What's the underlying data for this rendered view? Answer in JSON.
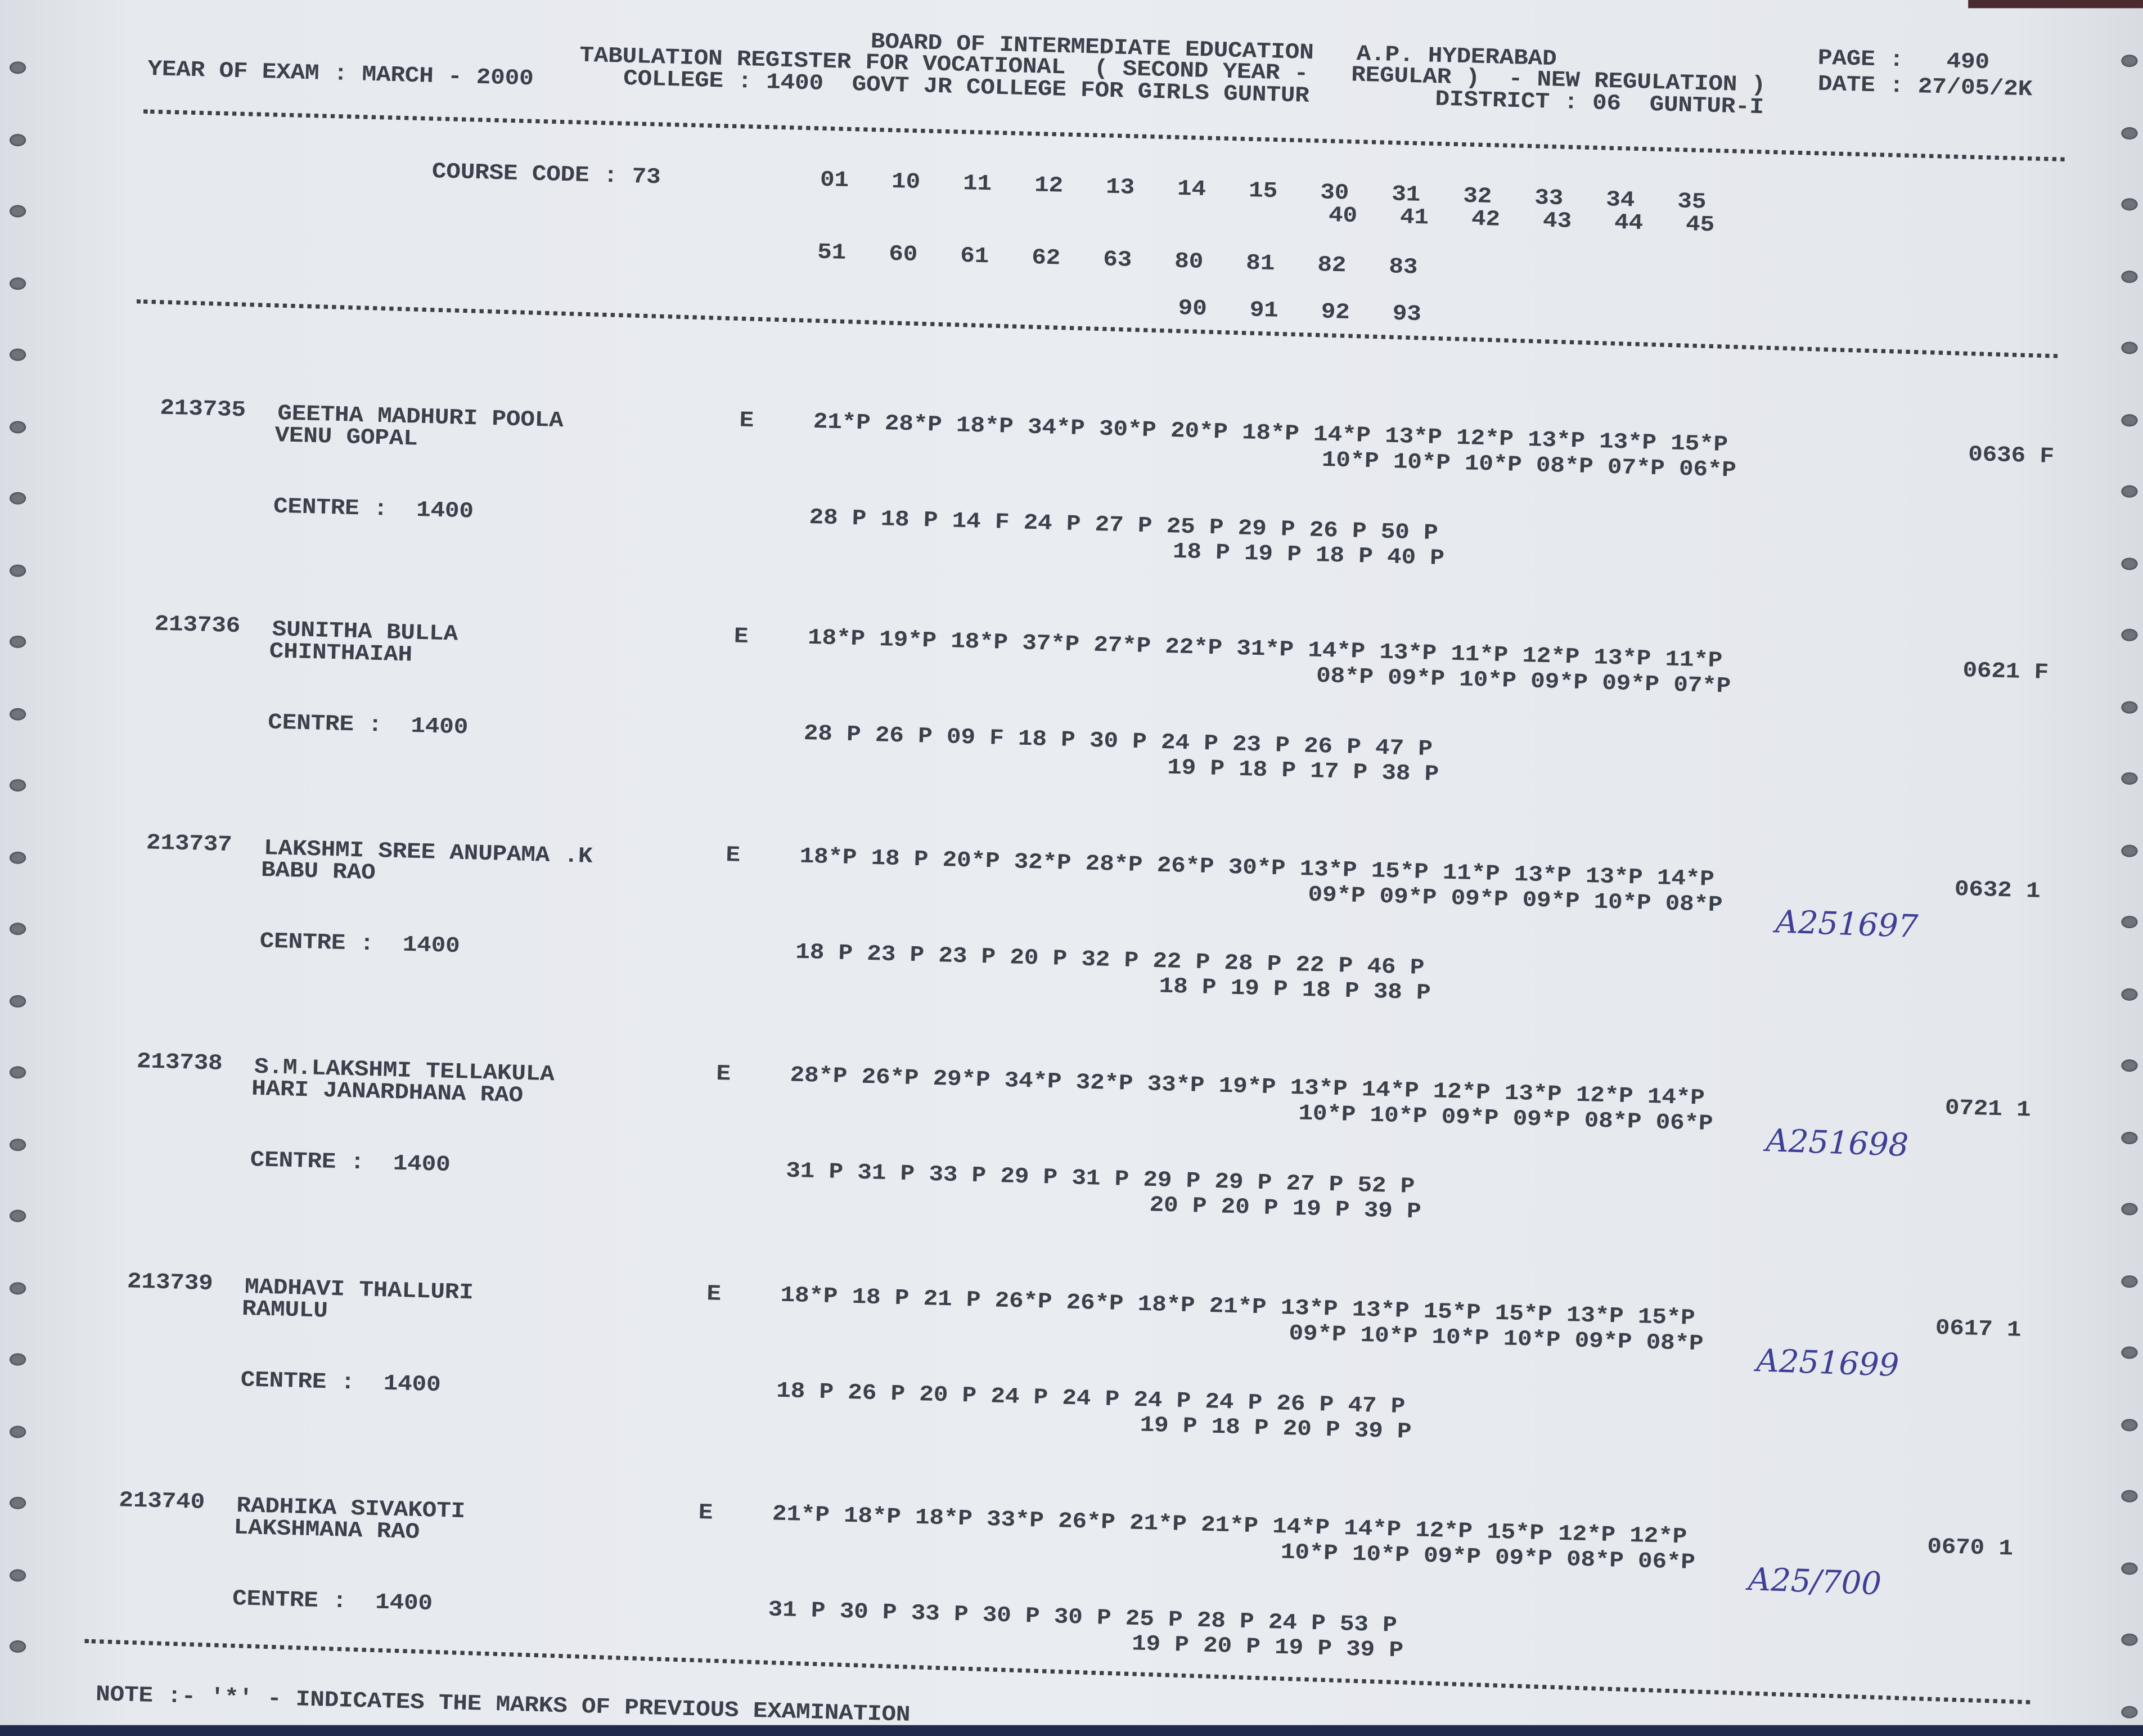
{
  "header": {
    "board_line": "BOARD OF INTERMEDIATE EDUCATION   A.P. HYDERABAD",
    "register_line": "TABULATION REGISTER FOR VOCATIONAL  ( SECOND YEAR -   REGULAR )  - NEW REGULATION )",
    "year_of_exam": "YEAR OF EXAM : MARCH - 2000",
    "college_line": "COLLEGE : 1400  GOVT JR COLLEGE FOR GIRLS GUNTUR",
    "page": "PAGE :   490",
    "date": "DATE : 27/05/2K",
    "district": "DISTRICT : 06  GUNTUR-I"
  },
  "course": {
    "course_code": "COURSE CODE : 73",
    "codes_row1": "01   10   11   12   13   14   15   30   31   32   33   34   35",
    "codes_row2": "40   41   42   43   44   45",
    "codes_row3": "51   60   61   62   63   80   81   82   83",
    "codes_row4": "90   91   92   93"
  },
  "records": [
    {
      "roll": "213735",
      "name": "GEETHA MADHURI POOLA",
      "father": "VENU GOPAL",
      "type": "E",
      "marks_row1": "21*P 28*P 18*P 34*P 30*P 20*P 18*P 14*P 13*P 12*P 13*P 13*P 15*P",
      "marks_row2": "10*P 10*P 10*P 08*P 07*P 06*P",
      "centre": "CENTRE :  1400",
      "marks_row3": "28 P 18 P 14 F 24 P 27 P 25 P 29 P 26 P 50 P",
      "marks_row4": "18 P 19 P 18 P 40 P",
      "total": "0636 F",
      "annotation": ""
    },
    {
      "roll": "213736",
      "name": "SUNITHA BULLA",
      "father": "CHINTHAIAH",
      "type": "E",
      "marks_row1": "18*P 19*P 18*P 37*P 27*P 22*P 31*P 14*P 13*P 11*P 12*P 13*P 11*P",
      "marks_row2": "08*P 09*P 10*P 09*P 09*P 07*P",
      "centre": "CENTRE :  1400",
      "marks_row3": "28 P 26 P 09 F 18 P 30 P 24 P 23 P 26 P 47 P",
      "marks_row4": "19 P 18 P 17 P 38 P",
      "total": "0621 F",
      "annotation": ""
    },
    {
      "roll": "213737",
      "name": "LAKSHMI SREE ANUPAMA .K",
      "father": "BABU RAO",
      "type": "E",
      "marks_row1": "18*P 18 P 20*P 32*P 28*P 26*P 30*P 13*P 15*P 11*P 13*P 13*P 14*P",
      "marks_row2": "09*P 09*P 09*P 09*P 10*P 08*P",
      "centre": "CENTRE :  1400",
      "marks_row3": "18 P 23 P 23 P 20 P 32 P 22 P 28 P 22 P 46 P",
      "marks_row4": "18 P 19 P 18 P 38 P",
      "total": "0632 1",
      "annotation": "A251697"
    },
    {
      "roll": "213738",
      "name": "S.M.LAKSHMI TELLAKULA",
      "father": "HARI JANARDHANA RAO",
      "type": "E",
      "marks_row1": "28*P 26*P 29*P 34*P 32*P 33*P 19*P 13*P 14*P 12*P 13*P 12*P 14*P",
      "marks_row2": "10*P 10*P 09*P 09*P 08*P 06*P",
      "centre": "CENTRE :  1400",
      "marks_row3": "31 P 31 P 33 P 29 P 31 P 29 P 29 P 27 P 52 P",
      "marks_row4": "20 P 20 P 19 P 39 P",
      "total": "0721 1",
      "annotation": "A251698"
    },
    {
      "roll": "213739",
      "name": "MADHAVI THALLURI",
      "father": "RAMULU",
      "type": "E",
      "marks_row1": "18*P 18 P 21 P 26*P 26*P 18*P 21*P 13*P 13*P 15*P 15*P 13*P 15*P",
      "marks_row2": "09*P 10*P 10*P 10*P 09*P 08*P",
      "centre": "CENTRE :  1400",
      "marks_row3": "18 P 26 P 20 P 24 P 24 P 24 P 24 P 26 P 47 P",
      "marks_row4": "19 P 18 P 20 P 39 P",
      "total": "0617 1",
      "annotation": "A251699"
    },
    {
      "roll": "213740",
      "name": "RADHIKA SIVAKOTI",
      "father": "LAKSHMANA RAO",
      "type": "E",
      "marks_row1": "21*P 18*P 18*P 33*P 26*P 21*P 21*P 14*P 14*P 12*P 15*P 12*P 12*P",
      "marks_row2": "10*P 10*P 09*P 09*P 08*P 06*P",
      "centre": "CENTRE :  1400",
      "marks_row3": "31 P 30 P 33 P 30 P 30 P 25 P 28 P 24 P 53 P",
      "marks_row4": "19 P 20 P 19 P 39 P",
      "total": "0670 1",
      "annotation": "A25/700"
    }
  ],
  "footer": {
    "note": "NOTE :- '*' - INDICATES THE MARKS OF PREVIOUS EXAMINATION"
  }
}
